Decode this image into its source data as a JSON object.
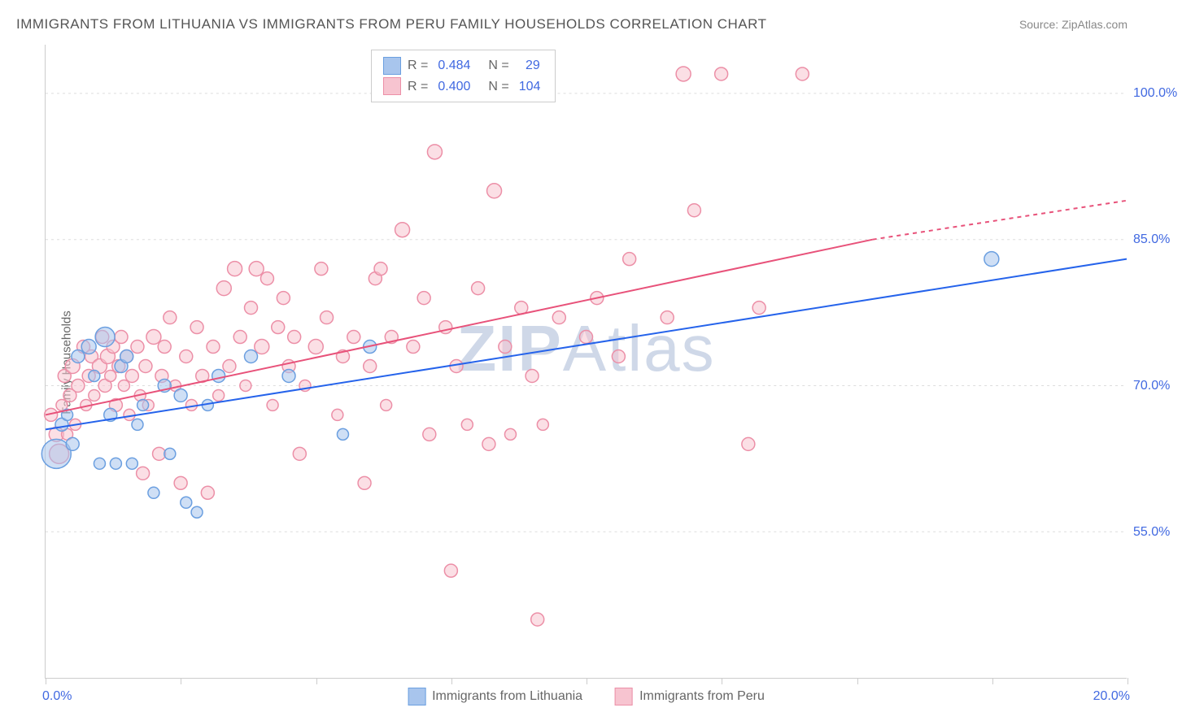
{
  "title": "IMMIGRANTS FROM LITHUANIA VS IMMIGRANTS FROM PERU FAMILY HOUSEHOLDS CORRELATION CHART",
  "source": "Source: ZipAtlas.com",
  "ylabel": "Family Households",
  "watermark_zip": "ZIP",
  "watermark_atlas": "Atlas",
  "chart": {
    "type": "scatter",
    "xlim": [
      0,
      20
    ],
    "ylim": [
      40,
      105
    ],
    "y_ticks": [
      55.0,
      70.0,
      85.0,
      100.0
    ],
    "y_tick_labels": [
      "55.0%",
      "70.0%",
      "85.0%",
      "100.0%"
    ],
    "x_ticks": [
      0,
      2.5,
      5,
      7.5,
      10,
      12.5,
      15,
      17.5,
      20
    ],
    "x_tick_labels_shown": {
      "0": "0.0%",
      "20": "20.0%"
    },
    "background_color": "#ffffff",
    "grid_color": "#dddddd",
    "axis_color": "#cccccc",
    "tick_label_color": "#4169e1"
  },
  "series": {
    "lithuania": {
      "label": "Immigrants from Lithuania",
      "color_fill": "#a8c5ed",
      "color_stroke": "#6b9fe0",
      "line_color": "#2563eb",
      "R": "0.484",
      "N": "29",
      "regression": {
        "x1": 0,
        "y1": 65.5,
        "x2": 20,
        "y2": 83.0
      },
      "points": [
        {
          "x": 0.2,
          "y": 63,
          "r": 18
        },
        {
          "x": 0.3,
          "y": 66,
          "r": 8
        },
        {
          "x": 0.4,
          "y": 67,
          "r": 7
        },
        {
          "x": 0.5,
          "y": 64,
          "r": 8
        },
        {
          "x": 0.6,
          "y": 73,
          "r": 8
        },
        {
          "x": 0.8,
          "y": 74,
          "r": 9
        },
        {
          "x": 0.9,
          "y": 71,
          "r": 7
        },
        {
          "x": 1.0,
          "y": 62,
          "r": 7
        },
        {
          "x": 1.1,
          "y": 75,
          "r": 12
        },
        {
          "x": 1.2,
          "y": 67,
          "r": 8
        },
        {
          "x": 1.3,
          "y": 62,
          "r": 7
        },
        {
          "x": 1.4,
          "y": 72,
          "r": 8
        },
        {
          "x": 1.5,
          "y": 73,
          "r": 8
        },
        {
          "x": 1.6,
          "y": 62,
          "r": 7
        },
        {
          "x": 1.7,
          "y": 66,
          "r": 7
        },
        {
          "x": 1.8,
          "y": 68,
          "r": 7
        },
        {
          "x": 2.0,
          "y": 59,
          "r": 7
        },
        {
          "x": 2.2,
          "y": 70,
          "r": 8
        },
        {
          "x": 2.3,
          "y": 63,
          "r": 7
        },
        {
          "x": 2.5,
          "y": 69,
          "r": 8
        },
        {
          "x": 2.6,
          "y": 58,
          "r": 7
        },
        {
          "x": 2.8,
          "y": 57,
          "r": 7
        },
        {
          "x": 3.0,
          "y": 68,
          "r": 7
        },
        {
          "x": 3.2,
          "y": 71,
          "r": 8
        },
        {
          "x": 3.8,
          "y": 73,
          "r": 8
        },
        {
          "x": 4.5,
          "y": 71,
          "r": 8
        },
        {
          "x": 5.5,
          "y": 65,
          "r": 7
        },
        {
          "x": 6.0,
          "y": 74,
          "r": 8
        },
        {
          "x": 17.5,
          "y": 83,
          "r": 9
        }
      ]
    },
    "peru": {
      "label": "Immigrants from Peru",
      "color_fill": "#f7c4d0",
      "color_stroke": "#ec8fa7",
      "line_color": "#e8527a",
      "R": "0.400",
      "N": "104",
      "regression": {
        "x1": 0,
        "y1": 67.0,
        "x2": 15.3,
        "y2": 85.0,
        "x2_dashed": 20,
        "y2_dashed": 89.0
      },
      "points": [
        {
          "x": 0.1,
          "y": 67,
          "r": 8
        },
        {
          "x": 0.2,
          "y": 65,
          "r": 9
        },
        {
          "x": 0.25,
          "y": 63,
          "r": 12
        },
        {
          "x": 0.3,
          "y": 68,
          "r": 7
        },
        {
          "x": 0.35,
          "y": 71,
          "r": 8
        },
        {
          "x": 0.4,
          "y": 65,
          "r": 7
        },
        {
          "x": 0.45,
          "y": 69,
          "r": 8
        },
        {
          "x": 0.5,
          "y": 72,
          "r": 9
        },
        {
          "x": 0.55,
          "y": 66,
          "r": 7
        },
        {
          "x": 0.6,
          "y": 70,
          "r": 8
        },
        {
          "x": 0.7,
          "y": 74,
          "r": 8
        },
        {
          "x": 0.75,
          "y": 68,
          "r": 7
        },
        {
          "x": 0.8,
          "y": 71,
          "r": 8
        },
        {
          "x": 0.85,
          "y": 73,
          "r": 8
        },
        {
          "x": 0.9,
          "y": 69,
          "r": 7
        },
        {
          "x": 1.0,
          "y": 72,
          "r": 9
        },
        {
          "x": 1.05,
          "y": 75,
          "r": 8
        },
        {
          "x": 1.1,
          "y": 70,
          "r": 8
        },
        {
          "x": 1.15,
          "y": 73,
          "r": 9
        },
        {
          "x": 1.2,
          "y": 71,
          "r": 7
        },
        {
          "x": 1.25,
          "y": 74,
          "r": 8
        },
        {
          "x": 1.3,
          "y": 68,
          "r": 8
        },
        {
          "x": 1.35,
          "y": 72,
          "r": 8
        },
        {
          "x": 1.4,
          "y": 75,
          "r": 8
        },
        {
          "x": 1.45,
          "y": 70,
          "r": 7
        },
        {
          "x": 1.5,
          "y": 73,
          "r": 8
        },
        {
          "x": 1.55,
          "y": 67,
          "r": 7
        },
        {
          "x": 1.6,
          "y": 71,
          "r": 8
        },
        {
          "x": 1.7,
          "y": 74,
          "r": 8
        },
        {
          "x": 1.75,
          "y": 69,
          "r": 7
        },
        {
          "x": 1.8,
          "y": 61,
          "r": 8
        },
        {
          "x": 1.85,
          "y": 72,
          "r": 8
        },
        {
          "x": 1.9,
          "y": 68,
          "r": 7
        },
        {
          "x": 2.0,
          "y": 75,
          "r": 9
        },
        {
          "x": 2.1,
          "y": 63,
          "r": 8
        },
        {
          "x": 2.15,
          "y": 71,
          "r": 8
        },
        {
          "x": 2.2,
          "y": 74,
          "r": 8
        },
        {
          "x": 2.3,
          "y": 77,
          "r": 8
        },
        {
          "x": 2.4,
          "y": 70,
          "r": 7
        },
        {
          "x": 2.5,
          "y": 60,
          "r": 8
        },
        {
          "x": 2.6,
          "y": 73,
          "r": 8
        },
        {
          "x": 2.7,
          "y": 68,
          "r": 7
        },
        {
          "x": 2.8,
          "y": 76,
          "r": 8
        },
        {
          "x": 2.9,
          "y": 71,
          "r": 8
        },
        {
          "x": 3.0,
          "y": 59,
          "r": 8
        },
        {
          "x": 3.1,
          "y": 74,
          "r": 8
        },
        {
          "x": 3.2,
          "y": 69,
          "r": 7
        },
        {
          "x": 3.3,
          "y": 80,
          "r": 9
        },
        {
          "x": 3.4,
          "y": 72,
          "r": 8
        },
        {
          "x": 3.5,
          "y": 82,
          "r": 9
        },
        {
          "x": 3.6,
          "y": 75,
          "r": 8
        },
        {
          "x": 3.7,
          "y": 70,
          "r": 7
        },
        {
          "x": 3.8,
          "y": 78,
          "r": 8
        },
        {
          "x": 3.9,
          "y": 82,
          "r": 9
        },
        {
          "x": 4.0,
          "y": 74,
          "r": 9
        },
        {
          "x": 4.1,
          "y": 81,
          "r": 8
        },
        {
          "x": 4.2,
          "y": 68,
          "r": 7
        },
        {
          "x": 4.3,
          "y": 76,
          "r": 8
        },
        {
          "x": 4.4,
          "y": 79,
          "r": 8
        },
        {
          "x": 4.5,
          "y": 72,
          "r": 8
        },
        {
          "x": 4.6,
          "y": 75,
          "r": 8
        },
        {
          "x": 4.7,
          "y": 63,
          "r": 8
        },
        {
          "x": 4.8,
          "y": 70,
          "r": 7
        },
        {
          "x": 5.0,
          "y": 74,
          "r": 9
        },
        {
          "x": 5.1,
          "y": 82,
          "r": 8
        },
        {
          "x": 5.2,
          "y": 77,
          "r": 8
        },
        {
          "x": 5.4,
          "y": 67,
          "r": 7
        },
        {
          "x": 5.5,
          "y": 73,
          "r": 8
        },
        {
          "x": 5.7,
          "y": 75,
          "r": 8
        },
        {
          "x": 5.9,
          "y": 60,
          "r": 8
        },
        {
          "x": 6.0,
          "y": 72,
          "r": 8
        },
        {
          "x": 6.1,
          "y": 81,
          "r": 8
        },
        {
          "x": 6.2,
          "y": 82,
          "r": 8
        },
        {
          "x": 6.3,
          "y": 68,
          "r": 7
        },
        {
          "x": 6.4,
          "y": 75,
          "r": 8
        },
        {
          "x": 6.6,
          "y": 86,
          "r": 9
        },
        {
          "x": 6.8,
          "y": 74,
          "r": 8
        },
        {
          "x": 7.0,
          "y": 79,
          "r": 8
        },
        {
          "x": 7.1,
          "y": 65,
          "r": 8
        },
        {
          "x": 7.2,
          "y": 94,
          "r": 9
        },
        {
          "x": 7.4,
          "y": 76,
          "r": 8
        },
        {
          "x": 7.5,
          "y": 51,
          "r": 8
        },
        {
          "x": 7.6,
          "y": 72,
          "r": 8
        },
        {
          "x": 7.8,
          "y": 66,
          "r": 7
        },
        {
          "x": 8.0,
          "y": 80,
          "r": 8
        },
        {
          "x": 8.2,
          "y": 64,
          "r": 8
        },
        {
          "x": 8.3,
          "y": 90,
          "r": 9
        },
        {
          "x": 8.5,
          "y": 74,
          "r": 8
        },
        {
          "x": 8.6,
          "y": 65,
          "r": 7
        },
        {
          "x": 8.8,
          "y": 78,
          "r": 8
        },
        {
          "x": 9.0,
          "y": 71,
          "r": 8
        },
        {
          "x": 9.1,
          "y": 46,
          "r": 8
        },
        {
          "x": 9.2,
          "y": 66,
          "r": 7
        },
        {
          "x": 9.5,
          "y": 77,
          "r": 8
        },
        {
          "x": 10.0,
          "y": 75,
          "r": 8
        },
        {
          "x": 10.2,
          "y": 79,
          "r": 8
        },
        {
          "x": 10.6,
          "y": 73,
          "r": 8
        },
        {
          "x": 10.8,
          "y": 83,
          "r": 8
        },
        {
          "x": 11.5,
          "y": 77,
          "r": 8
        },
        {
          "x": 11.8,
          "y": 102,
          "r": 9
        },
        {
          "x": 12.0,
          "y": 88,
          "r": 8
        },
        {
          "x": 12.5,
          "y": 102,
          "r": 8
        },
        {
          "x": 13.0,
          "y": 64,
          "r": 8
        },
        {
          "x": 13.2,
          "y": 78,
          "r": 8
        },
        {
          "x": 14.0,
          "y": 102,
          "r": 8
        }
      ]
    }
  },
  "bottom_legend": {
    "lithuania": "Immigrants from Lithuania",
    "peru": "Immigrants from Peru"
  },
  "legend_r_label": "R =",
  "legend_n_label": "N ="
}
